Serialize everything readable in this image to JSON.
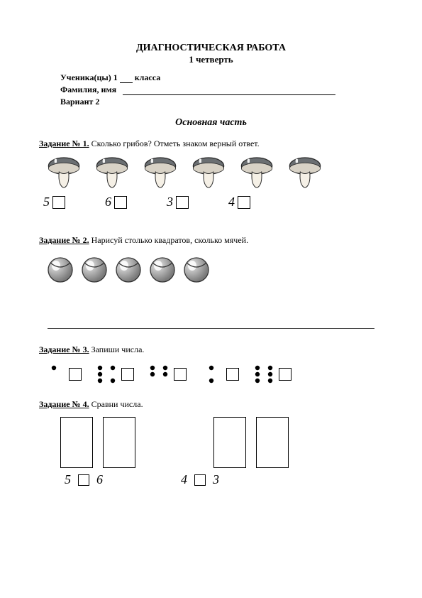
{
  "title": "ДИАГНОСТИЧЕСКАЯ РАБОТА",
  "subtitle": "1 четверть",
  "header": {
    "student_prefix": "Ученика(цы) 1",
    "student_suffix": "класса",
    "name_label": "Фамилия, имя",
    "variant": "Вариант 2"
  },
  "section_title": "Основная часть",
  "tasks": {
    "t1": {
      "label": "Задание № 1.",
      "text": "Сколько грибов? Отметь знаком верный ответ.",
      "mushroom_count": 6,
      "options": [
        "5",
        "6",
        "3",
        "4"
      ]
    },
    "t2": {
      "label": "Задание № 2.",
      "text": "Нарисуй столько квадратов, сколько мячей.",
      "ball_count": 5
    },
    "t3": {
      "label": "Задание № 3.",
      "text": "Запиши числа.",
      "groups": [
        {
          "dots": [
            [
              0,
              1
            ]
          ],
          "count": 1
        },
        {
          "dots": [
            [
              0,
              0
            ],
            [
              1,
              0
            ],
            [
              2,
              0
            ],
            [
              0,
              2
            ],
            [
              2,
              2
            ]
          ],
          "count": 5
        },
        {
          "dots": [
            [
              0,
              0
            ],
            [
              1,
              0
            ],
            [
              0,
              2
            ],
            [
              1,
              2
            ]
          ],
          "count": 4
        },
        {
          "dots": [
            [
              0,
              1
            ],
            [
              2,
              1
            ]
          ],
          "count": 2
        },
        {
          "dots": [
            [
              0,
              0
            ],
            [
              1,
              0
            ],
            [
              2,
              0
            ],
            [
              0,
              2
            ],
            [
              1,
              2
            ],
            [
              2,
              2
            ]
          ],
          "count": 6
        }
      ]
    },
    "t4": {
      "label": "Задание № 4.",
      "text": "Сравни числа.",
      "pairs": [
        [
          "5",
          "6"
        ],
        [
          "4",
          "3"
        ]
      ]
    }
  },
  "colors": {
    "page_bg": "#ffffff",
    "text": "#000000",
    "mushroom_cap": "#6b6f72",
    "mushroom_stem": "#f5f0e6",
    "mushroom_outline": "#2a2a2a",
    "ball_light": "#e8e8e8",
    "ball_dark": "#7a7a7a",
    "ball_outline": "#333333",
    "dot": "#000000"
  }
}
